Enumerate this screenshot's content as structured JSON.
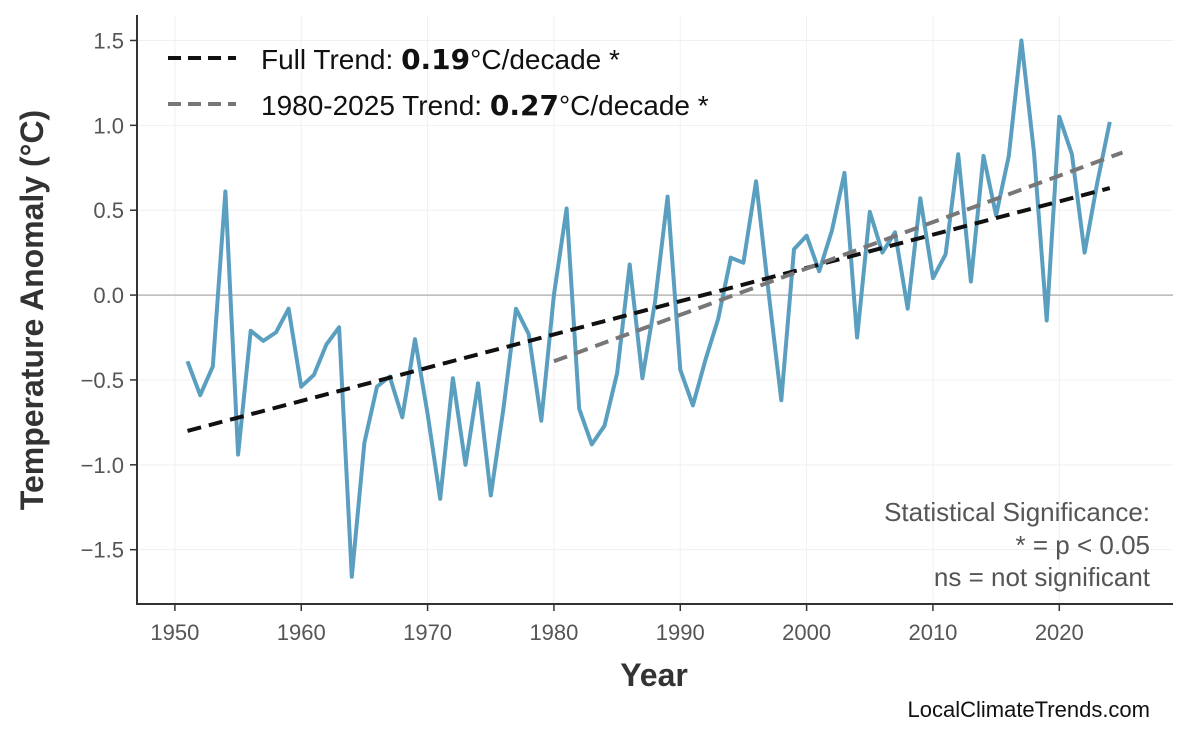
{
  "chart_data": {
    "type": "line",
    "xlabel": "Year",
    "ylabel": "Temperature Anomaly (°C)",
    "xlim": [
      1947,
      2029
    ],
    "ylim": [
      -1.82,
      1.65
    ],
    "x_ticks": [
      1950,
      1960,
      1970,
      1980,
      1990,
      2000,
      2010,
      2020
    ],
    "x_tick_labels": [
      "1950",
      "1960",
      "1970",
      "1980",
      "1990",
      "2000",
      "2010",
      "2020"
    ],
    "y_ticks": [
      -1.5,
      -1.0,
      -0.5,
      0.0,
      0.5,
      1.0,
      1.5
    ],
    "y_tick_labels": [
      "−1.5",
      "−1.0",
      "−0.5",
      "0.0",
      "0.5",
      "1.0",
      "1.5"
    ],
    "grid": true,
    "zero_line": true,
    "legend_position": "top-left",
    "series": [
      {
        "kind": "anomaly",
        "color": "#5a9fbf",
        "x": [
          1951,
          1952,
          1953,
          1954,
          1955,
          1956,
          1957,
          1958,
          1959,
          1960,
          1961,
          1962,
          1963,
          1964,
          1965,
          1966,
          1967,
          1968,
          1969,
          1970,
          1971,
          1972,
          1973,
          1974,
          1975,
          1976,
          1977,
          1978,
          1979,
          1980,
          1981,
          1982,
          1983,
          1984,
          1985,
          1986,
          1987,
          1988,
          1989,
          1990,
          1991,
          1992,
          1993,
          1994,
          1995,
          1996,
          1997,
          1998,
          1999,
          2000,
          2001,
          2002,
          2003,
          2004,
          2005,
          2006,
          2007,
          2008,
          2009,
          2010,
          2011,
          2012,
          2013,
          2014,
          2015,
          2016,
          2017,
          2018,
          2019,
          2020,
          2021,
          2022,
          2023,
          2024
        ],
        "values": [
          -0.39,
          -0.59,
          -0.42,
          0.61,
          -0.94,
          -0.21,
          -0.27,
          -0.22,
          -0.08,
          -0.54,
          -0.47,
          -0.29,
          -0.19,
          -1.66,
          -0.87,
          -0.54,
          -0.48,
          -0.72,
          -0.26,
          -0.7,
          -1.2,
          -0.49,
          -1.0,
          -0.52,
          -1.18,
          -0.67,
          -0.08,
          -0.23,
          -0.74,
          0.0,
          0.51,
          -0.67,
          -0.88,
          -0.77,
          -0.46,
          0.18,
          -0.49,
          -0.04,
          0.58,
          -0.44,
          -0.65,
          -0.38,
          -0.14,
          0.22,
          0.19,
          0.67,
          0.01,
          -0.62,
          0.27,
          0.35,
          0.14,
          0.38,
          0.72,
          -0.25,
          0.49,
          0.25,
          0.37,
          -0.08,
          0.57,
          0.1,
          0.24,
          0.83,
          0.08,
          0.82,
          0.47,
          0.82,
          1.5,
          0.84,
          -0.15,
          1.05,
          0.83,
          0.25,
          0.66,
          1.02
        ]
      },
      {
        "kind": "full-trend",
        "color": "#111111",
        "x": [
          1951,
          2024
        ],
        "values": [
          -0.8,
          0.63
        ]
      },
      {
        "kind": "recent-trend",
        "color": "#777777",
        "x": [
          1980,
          2025
        ],
        "values": [
          -0.39,
          0.84
        ]
      }
    ]
  },
  "legend": {
    "full": {
      "prefix": "Full Trend: ",
      "value": "0.19",
      "suffix": "°C/decade *"
    },
    "recent": {
      "prefix": "1980-2025 Trend: ",
      "value": "0.27",
      "suffix": "°C/decade *"
    }
  },
  "note": {
    "line1": "Statistical Significance:",
    "line2": "* = p < 0.05",
    "line3": "ns = not significant"
  },
  "credit": "LocalClimateTrends.com"
}
